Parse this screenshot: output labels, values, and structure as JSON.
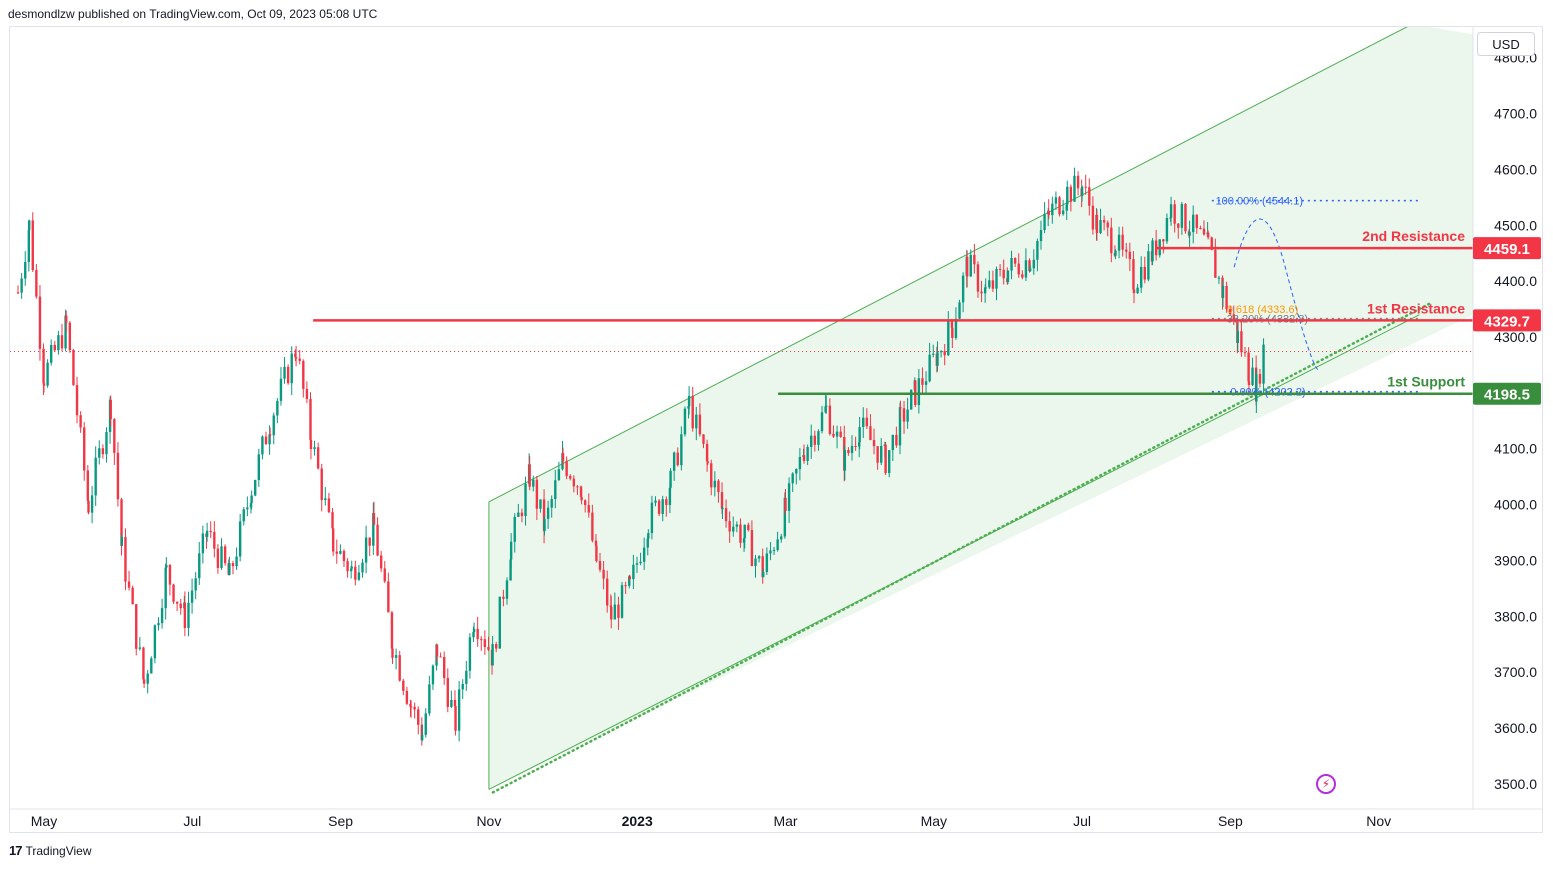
{
  "publisher_line": "desmondlzw published on TradingView.com, Oct 09, 2023 05:08 UTC",
  "footer_brand": "TradingView",
  "currency_label": "USD",
  "colors": {
    "up": "#089981",
    "down": "#f23645",
    "resistance": "#f23645",
    "support": "#388e3c",
    "channel": "#4caf50",
    "channel_fill": "#e8f5e9",
    "fib_blue": "#2962ff",
    "fib_orange": "#ff9800"
  },
  "chart_data": {
    "type": "candlestick",
    "title": "",
    "ylim": [
      3455,
      4855
    ],
    "y_ticks": [
      3500,
      3600,
      3700,
      3800,
      3900,
      4000,
      4100,
      4200,
      4300,
      4400,
      4500,
      4600,
      4700,
      4800
    ],
    "y_tick_labels": [
      "3500.0",
      "3600.0",
      "3700.0",
      "3800.0",
      "3900.0",
      "4000.0",
      "4100.0",
      "4200.0",
      "4300.0",
      "4400.0",
      "4500.0",
      "4600.0",
      "4700.0",
      "4800.0"
    ],
    "x_labels": [
      {
        "label": "May",
        "month_index": 1
      },
      {
        "label": "Jul",
        "month_index": 3
      },
      {
        "label": "Sep",
        "month_index": 5
      },
      {
        "label": "Nov",
        "month_index": 7
      },
      {
        "label": "2023",
        "month_index": 9
      },
      {
        "label": "Mar",
        "month_index": 11
      },
      {
        "label": "May",
        "month_index": 13
      },
      {
        "label": "Jul",
        "month_index": 15
      },
      {
        "label": "Sep",
        "month_index": 17
      },
      {
        "label": "Nov",
        "month_index": 19
      }
    ],
    "x_range_months": [
      0.6,
      20.5
    ],
    "price_path": [
      [
        0.65,
        4380
      ],
      [
        0.8,
        4500
      ],
      [
        1.0,
        4230
      ],
      [
        1.3,
        4320
      ],
      [
        1.6,
        4000
      ],
      [
        1.9,
        4180
      ],
      [
        2.05,
        3920
      ],
      [
        2.35,
        3680
      ],
      [
        2.65,
        3880
      ],
      [
        2.9,
        3800
      ],
      [
        3.2,
        3950
      ],
      [
        3.5,
        3870
      ],
      [
        3.8,
        4030
      ],
      [
        4.05,
        4150
      ],
      [
        4.4,
        4280
      ],
      [
        4.6,
        4120
      ],
      [
        4.9,
        3930
      ],
      [
        5.15,
        3880
      ],
      [
        5.45,
        3960
      ],
      [
        5.7,
        3750
      ],
      [
        5.95,
        3640
      ],
      [
        6.1,
        3590
      ],
      [
        6.3,
        3740
      ],
      [
        6.55,
        3610
      ],
      [
        6.8,
        3800
      ],
      [
        7.05,
        3730
      ],
      [
        7.3,
        3930
      ],
      [
        7.55,
        4050
      ],
      [
        7.75,
        3960
      ],
      [
        8.0,
        4080
      ],
      [
        8.25,
        4030
      ],
      [
        8.45,
        3900
      ],
      [
        8.65,
        3800
      ],
      [
        8.9,
        3850
      ],
      [
        9.15,
        3970
      ],
      [
        9.45,
        4040
      ],
      [
        9.7,
        4180
      ],
      [
        9.95,
        4070
      ],
      [
        10.15,
        3990
      ],
      [
        10.45,
        3940
      ],
      [
        10.7,
        3880
      ],
      [
        11.0,
        3990
      ],
      [
        11.25,
        4100
      ],
      [
        11.55,
        4170
      ],
      [
        11.8,
        4080
      ],
      [
        12.0,
        4140
      ],
      [
        12.35,
        4080
      ],
      [
        12.55,
        4150
      ],
      [
        12.75,
        4200
      ],
      [
        13.05,
        4270
      ],
      [
        13.25,
        4320
      ],
      [
        13.45,
        4430
      ],
      [
        13.7,
        4380
      ],
      [
        14.0,
        4420
      ],
      [
        14.3,
        4440
      ],
      [
        14.55,
        4520
      ],
      [
        14.8,
        4560
      ],
      [
        15.0,
        4570
      ],
      [
        15.2,
        4500
      ],
      [
        15.45,
        4470
      ],
      [
        15.7,
        4400
      ],
      [
        15.95,
        4450
      ],
      [
        16.2,
        4530
      ],
      [
        16.45,
        4500
      ],
      [
        16.7,
        4460
      ],
      [
        16.9,
        4380
      ],
      [
        17.1,
        4300
      ],
      [
        17.25,
        4240
      ],
      [
        17.35,
        4210
      ],
      [
        17.45,
        4280
      ]
    ],
    "last_price": 4274,
    "channel": {
      "upper": [
        [
          7.0,
          4005
        ],
        [
          19.45,
          4860
        ]
      ],
      "lower": [
        [
          7.0,
          3490
        ],
        [
          19.55,
          4340
        ]
      ]
    },
    "levels": [
      {
        "name": "2nd Resistance",
        "value": 4459.1,
        "label": "4459.1",
        "color": "#f23645",
        "from": 16.0
      },
      {
        "name": "1st Resistance",
        "value": 4329.7,
        "label": "4329.7",
        "color": "#f23645",
        "from": 4.63
      },
      {
        "name": "1st Support",
        "value": 4198.5,
        "label": "4198.5",
        "color": "#388e3c",
        "from": 10.9
      }
    ],
    "fibonacci": {
      "high_label": "100.00% (4544.1)",
      "high_value": 4544.1,
      "mid_label": "38.20% (4332.8)",
      "mid_value": 4332.8,
      "golden_label": "0.618 (4333.6)",
      "golden_value": 4333.6,
      "low_label": "0.00% (4202.2)",
      "low_value": 4202.2,
      "from": 16.75,
      "to": 19.55
    }
  }
}
